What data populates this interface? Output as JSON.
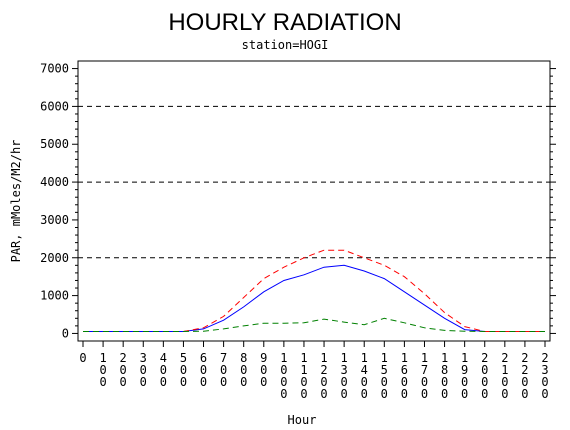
{
  "chart_data": {
    "type": "line",
    "title": "HOURLY RADIATION",
    "subtitle": "station=HOGI",
    "xlabel": "Hour",
    "ylabel": "PAR, mMoles/M2/hr",
    "xlim": [
      0,
      2300
    ],
    "ylim": [
      -200,
      7200
    ],
    "x": [
      0,
      100,
      200,
      300,
      400,
      500,
      600,
      700,
      800,
      900,
      1000,
      1100,
      1200,
      1300,
      1400,
      1500,
      1600,
      1700,
      1800,
      1900,
      2000,
      2100,
      2200,
      2300
    ],
    "x_tick_labels": [
      "0",
      "100",
      "200",
      "300",
      "400",
      "500",
      "600",
      "700",
      "800",
      "900",
      "1000",
      "1100",
      "1200",
      "1300",
      "1400",
      "1500",
      "1600",
      "1700",
      "1800",
      "1900",
      "2000",
      "2100",
      "2200",
      "2300"
    ],
    "y_ticks": [
      0,
      1000,
      2000,
      3000,
      4000,
      5000,
      6000,
      7000
    ],
    "y_tick_labels": [
      "0",
      "1000",
      "2000",
      "3000",
      "4000",
      "5000",
      "6000",
      "7000"
    ],
    "reference_lines": [
      2000,
      4000,
      6000
    ],
    "grid": false,
    "series": [
      {
        "values": [
          50,
          50,
          50,
          50,
          50,
          50,
          120,
          350,
          700,
          1100,
          1400,
          1550,
          1750,
          1800,
          1650,
          1450,
          1100,
          750,
          400,
          100,
          50,
          50,
          50,
          50
        ],
        "color": "#0000ff",
        "dash": "solid"
      },
      {
        "values": [
          50,
          50,
          50,
          50,
          50,
          50,
          150,
          450,
          950,
          1450,
          1750,
          2000,
          2200,
          2200,
          2000,
          1800,
          1500,
          1050,
          550,
          180,
          50,
          50,
          50,
          50
        ],
        "color": "#ff0000",
        "dash": "dashed"
      },
      {
        "values": [
          50,
          50,
          50,
          50,
          50,
          50,
          60,
          120,
          200,
          270,
          270,
          280,
          380,
          300,
          230,
          400,
          280,
          150,
          80,
          60,
          50,
          50,
          50,
          50
        ],
        "color": "#008000",
        "dash": "dashed"
      }
    ]
  }
}
